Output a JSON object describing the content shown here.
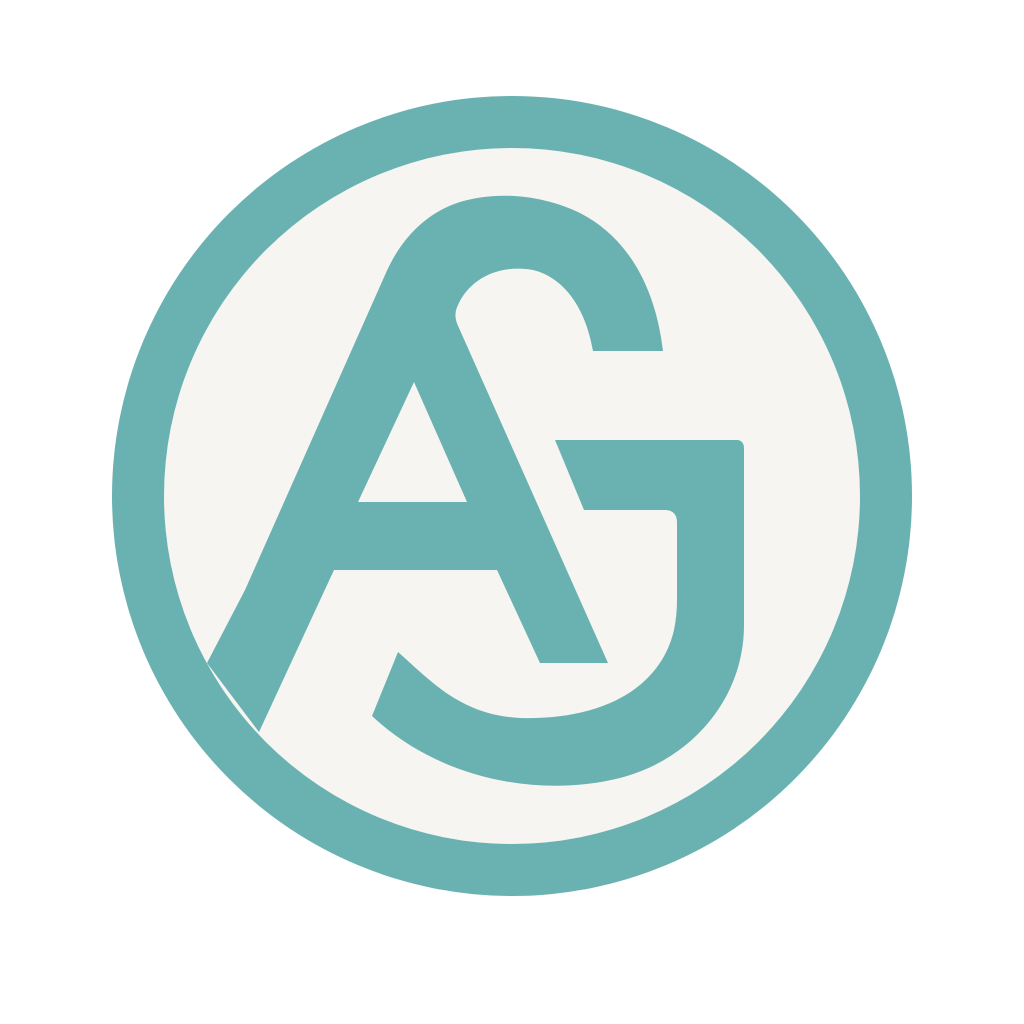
{
  "logo": {
    "monogram": "AG",
    "letters": [
      "A",
      "G"
    ],
    "colors": {
      "background": "#ffffff",
      "ring": "#6ab2b2",
      "inner_fill": "#f6f5f1",
      "letters": "#6ab2b2"
    }
  }
}
